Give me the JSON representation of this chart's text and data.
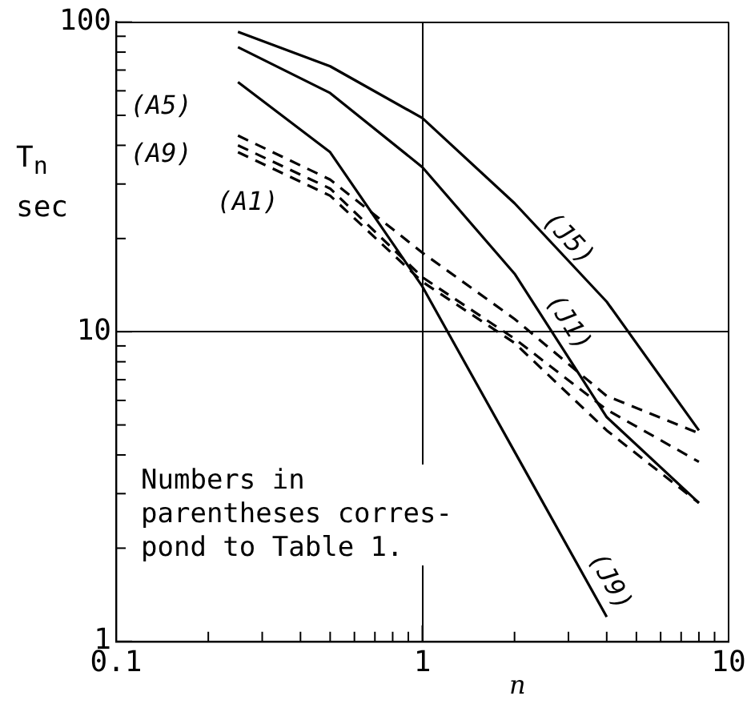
{
  "chart_data": {
    "type": "line",
    "ylabel": "T$_{n}$ sec",
    "xlabel": "n",
    "annotations": [
      "Numbers in\nparentheses corres-\npond to Table 1."
    ],
    "log": "xy",
    "grid": true,
    "legend": false,
    "marker": "none",
    "xlim": [
      0.1,
      10
    ],
    "ylim": [
      1,
      100
    ],
    "xticks": [
      {
        "value": 0.1,
        "label": "0.1"
      },
      {
        "value": 0.2,
        "label": null
      },
      {
        "value": 0.3,
        "label": null
      },
      {
        "value": 0.4,
        "label": null
      },
      {
        "value": 0.5,
        "label": null
      },
      {
        "value": 0.6,
        "label": null
      },
      {
        "value": 0.7,
        "label": null
      },
      {
        "value": 0.8,
        "label": null
      },
      {
        "value": 0.9,
        "label": null
      },
      1,
      {
        "value": 2,
        "label": null
      },
      {
        "value": 3,
        "label": null
      },
      {
        "value": 4,
        "label": null
      },
      {
        "value": 5,
        "label": null
      },
      {
        "value": 6,
        "label": null
      },
      {
        "value": 7,
        "label": null
      },
      {
        "value": 8,
        "label": null
      },
      {
        "value": 9,
        "label": null
      },
      10
    ],
    "yticks": [
      1,
      {
        "value": 2,
        "label": null
      },
      {
        "value": 3,
        "label": null
      },
      {
        "value": 4,
        "label": null
      },
      {
        "value": 5,
        "label": null
      },
      {
        "value": 6,
        "label": null
      },
      {
        "value": 7,
        "label": null
      },
      {
        "value": 8,
        "label": null
      },
      {
        "value": 9,
        "label": null
      },
      10,
      {
        "value": 20,
        "label": null
      },
      {
        "value": 30,
        "label": null
      },
      {
        "value": 40,
        "label": null
      },
      {
        "value": 50,
        "label": null
      },
      {
        "value": 60,
        "label": null
      },
      {
        "value": 70,
        "label": null
      },
      {
        "value": 80,
        "label": null
      },
      {
        "value": 90,
        "label": null
      },
      100
    ],
    "x": [
      0.25,
      0.5,
      1,
      2,
      4,
      8
    ],
    "series": [
      {
        "name": "(J5)",
        "color": "#000000",
        "line_style": "solid",
        "values": [
          93,
          72,
          49,
          26,
          12.5,
          4.8
        ]
      },
      {
        "name": "(J1)",
        "color": "#000000",
        "line_style": "solid",
        "values": [
          83,
          59,
          34,
          15.4,
          5.3,
          2.8
        ]
      },
      {
        "name": "(J9)",
        "color": "#000000",
        "line_style": "solid",
        "values": [
          64,
          38,
          14,
          4.1,
          1.2,
          null
        ]
      },
      {
        "name": "(A5)",
        "color": "#000000",
        "line_style": "dashed",
        "values": [
          43,
          31,
          18,
          11,
          6.2,
          4.7
        ]
      },
      {
        "name": "(A9)",
        "color": "#000000",
        "line_style": "dashed",
        "values": [
          40,
          29,
          15,
          9.5,
          5.6,
          3.8
        ]
      },
      {
        "name": "(A1)",
        "color": "#000000",
        "line_style": "dashed",
        "values": [
          38,
          27.5,
          14.5,
          9.2,
          4.8,
          2.8
        ]
      }
    ]
  }
}
